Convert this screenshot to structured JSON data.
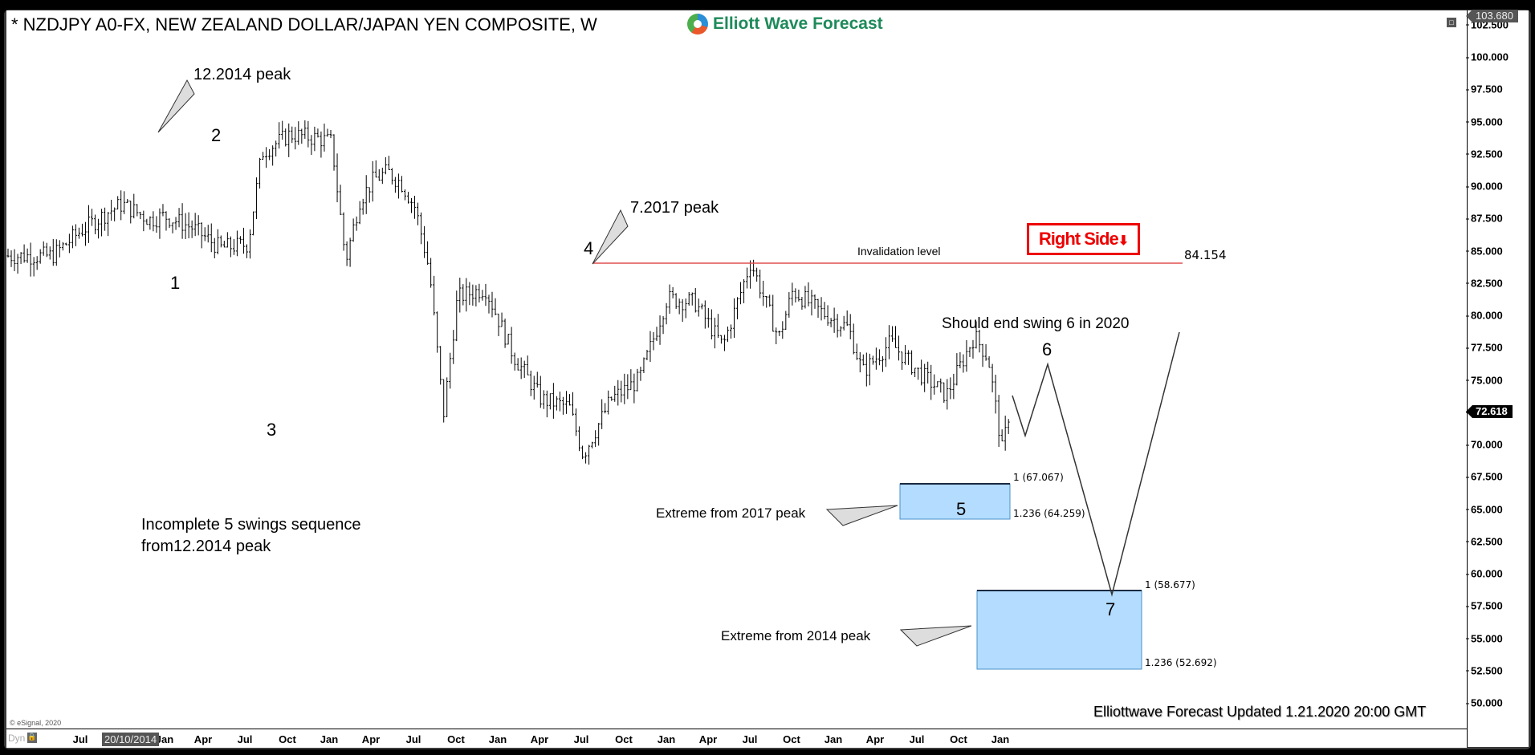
{
  "header": {
    "title": "* NZDJPY A0-FX, NEW ZEALAND DOLLAR/JAPAN YEN COMPOSITE, W",
    "brand": "Elliott Wave Forecast"
  },
  "axis": {
    "y_ticks": [
      "102.500",
      "100.000",
      "97.500",
      "95.000",
      "92.500",
      "90.000",
      "87.500",
      "85.000",
      "82.500",
      "80.000",
      "77.500",
      "75.000",
      "72.500",
      "70.000",
      "67.500",
      "65.000",
      "62.500",
      "60.000",
      "57.500",
      "55.000",
      "52.500",
      "50.000"
    ],
    "high_tag": "103.680",
    "current_price": "72.618",
    "x_ticks": [
      "Jul",
      "Jan",
      "Apr",
      "Jul",
      "Oct",
      "Jan",
      "Apr",
      "Jul",
      "Oct",
      "Jan",
      "Apr",
      "Jul",
      "Oct",
      "Jan",
      "Apr",
      "Jul",
      "Oct",
      "Jan",
      "Apr",
      "Jul",
      "Oct",
      "Jan"
    ],
    "cursor_date": "20/10/2014",
    "dyn_label": "Dyn",
    "lock_icon": "lock-icon"
  },
  "annotations": {
    "peak_2014": "12.2014 peak",
    "peak_2017": "7.2017 peak",
    "wave_1": "1",
    "wave_2": "2",
    "wave_3": "3",
    "wave_4": "4",
    "wave_5": "5",
    "wave_6": "6",
    "wave_7": "7",
    "invalidation_label": "Invalidation level",
    "invalidation_value": "84.154",
    "right_side": "Right Side",
    "right_side_arrow": "⬇",
    "swing6_note": "Should end swing 6 in 2020",
    "incomplete_line1": "Incomplete 5 swings sequence",
    "incomplete_line2": "from12.2014 peak",
    "extreme_2017": "Extreme from 2017 peak",
    "extreme_2014": "Extreme from 2014 peak",
    "box1_top": "1 (67.067)",
    "box1_bottom": "1.236 (64.259)",
    "box2_top": "1 (58.677)",
    "box2_bottom": "1.236 (52.692)",
    "updated": "Elliottwave Forecast Updated 1.21.2020 20:00 GMT",
    "copyright": "© eSignal, 2020"
  },
  "chart_data": {
    "type": "ohlc",
    "title": "NZDJPY A0-FX, NEW ZEALAND DOLLAR/JAPAN YEN COMPOSITE, W",
    "frequency": "weekly",
    "ylim": [
      48.5,
      104
    ],
    "y_label_step": 2.5,
    "x_range": [
      "2013-05",
      "2020-01"
    ],
    "price_path_anchors": [
      {
        "date": "2013-05",
        "price": 84.6
      },
      {
        "date": "2013-07",
        "price": 86.5
      },
      {
        "date": "2013-09",
        "price": 88.0
      },
      {
        "date": "2013-10",
        "price": 88.6
      },
      {
        "date": "2013-12",
        "price": 87.4
      },
      {
        "date": "2014-01",
        "price": 87.7
      },
      {
        "date": "2014-03",
        "price": 86.8
      },
      {
        "date": "2014-05",
        "price": 85.2
      },
      {
        "date": "2014-07",
        "price": 85.5
      },
      {
        "date": "2014-08",
        "price": 92.6
      },
      {
        "date": "2014-10",
        "price": 94.0
      },
      {
        "date": "2014-12",
        "price": 93.7
      },
      {
        "date": "2015-01",
        "price": 93.4
      },
      {
        "date": "2015-02",
        "price": 84.2
      },
      {
        "date": "2015-03",
        "price": 88.9
      },
      {
        "date": "2015-04",
        "price": 90.5
      },
      {
        "date": "2015-05",
        "price": 91.1
      },
      {
        "date": "2015-06",
        "price": 90.2
      },
      {
        "date": "2015-07",
        "price": 88.3
      },
      {
        "date": "2015-08",
        "price": 83.4
      },
      {
        "date": "2015-09",
        "price": 72.3
      },
      {
        "date": "2015-10",
        "price": 81.4
      },
      {
        "date": "2015-12",
        "price": 82.1
      },
      {
        "date": "2016-02",
        "price": 76.9
      },
      {
        "date": "2016-04",
        "price": 73.5
      },
      {
        "date": "2016-06",
        "price": 72.9
      },
      {
        "date": "2016-07",
        "price": 69.2
      },
      {
        "date": "2016-09",
        "price": 73.5
      },
      {
        "date": "2016-11",
        "price": 75.0
      },
      {
        "date": "2016-12",
        "price": 78.1
      },
      {
        "date": "2017-01",
        "price": 81.3
      },
      {
        "date": "2017-03",
        "price": 81.0
      },
      {
        "date": "2017-05",
        "price": 77.6
      },
      {
        "date": "2017-07",
        "price": 84.15
      },
      {
        "date": "2017-09",
        "price": 78.2
      },
      {
        "date": "2017-10",
        "price": 81.9
      },
      {
        "date": "2017-12",
        "price": 80.3
      },
      {
        "date": "2018-02",
        "price": 79.0
      },
      {
        "date": "2018-03",
        "price": 75.6
      },
      {
        "date": "2018-05",
        "price": 77.9
      },
      {
        "date": "2018-07",
        "price": 75.6
      },
      {
        "date": "2018-09",
        "price": 73.8
      },
      {
        "date": "2018-11",
        "price": 78.4
      },
      {
        "date": "2018-12",
        "price": 76.7
      },
      {
        "date": "2019-01",
        "price": 69.5
      },
      {
        "date": "2019-02",
        "price": 75.6
      },
      {
        "date": "2019-04",
        "price": 76.5
      },
      {
        "date": "2019-05",
        "price": 74.5
      },
      {
        "date": "2019-07",
        "price": 71.2
      },
      {
        "date": "2019-08",
        "price": 67.0
      },
      {
        "date": "2019-09",
        "price": 68.9
      },
      {
        "date": "2019-11",
        "price": 70.5
      },
      {
        "date": "2019-12",
        "price": 72.5
      },
      {
        "date": "2020-01",
        "price": 72.6
      }
    ],
    "projection": [
      {
        "label": "",
        "price": 73.5
      },
      {
        "label": "",
        "price": 70.5
      },
      {
        "label": "6",
        "price": 76.4
      },
      {
        "label": "7",
        "price": 58.6
      },
      {
        "label": "",
        "price": 78.8
      }
    ],
    "levels": [
      {
        "name": "Invalidation level",
        "price": 84.154,
        "color": "#e00000"
      },
      {
        "name": "Extreme from 2017 peak",
        "from": 67.067,
        "to": 64.259,
        "labels": [
          "1 (67.067)",
          "1.236 (64.259)"
        ]
      },
      {
        "name": "Extreme from 2014 peak",
        "from": 58.677,
        "to": 52.692,
        "labels": [
          "1 (58.677)",
          "1.236 (52.692)"
        ]
      }
    ],
    "wave_labels": [
      {
        "label": "1",
        "price": 84.2
      },
      {
        "label": "2",
        "price": 92.6
      },
      {
        "label": "3",
        "price": 72.3
      },
      {
        "label": "4",
        "price": 84.15
      },
      {
        "label": "5",
        "price": 66.5
      },
      {
        "label": "6",
        "price": 76.4
      },
      {
        "label": "7",
        "price": 58.6
      }
    ],
    "current_price": 72.618,
    "colors": {
      "bars": "#000000",
      "box_fill": "#b3dcff",
      "box_edge": "#4a90c8",
      "invalidation": "#e00000"
    }
  }
}
